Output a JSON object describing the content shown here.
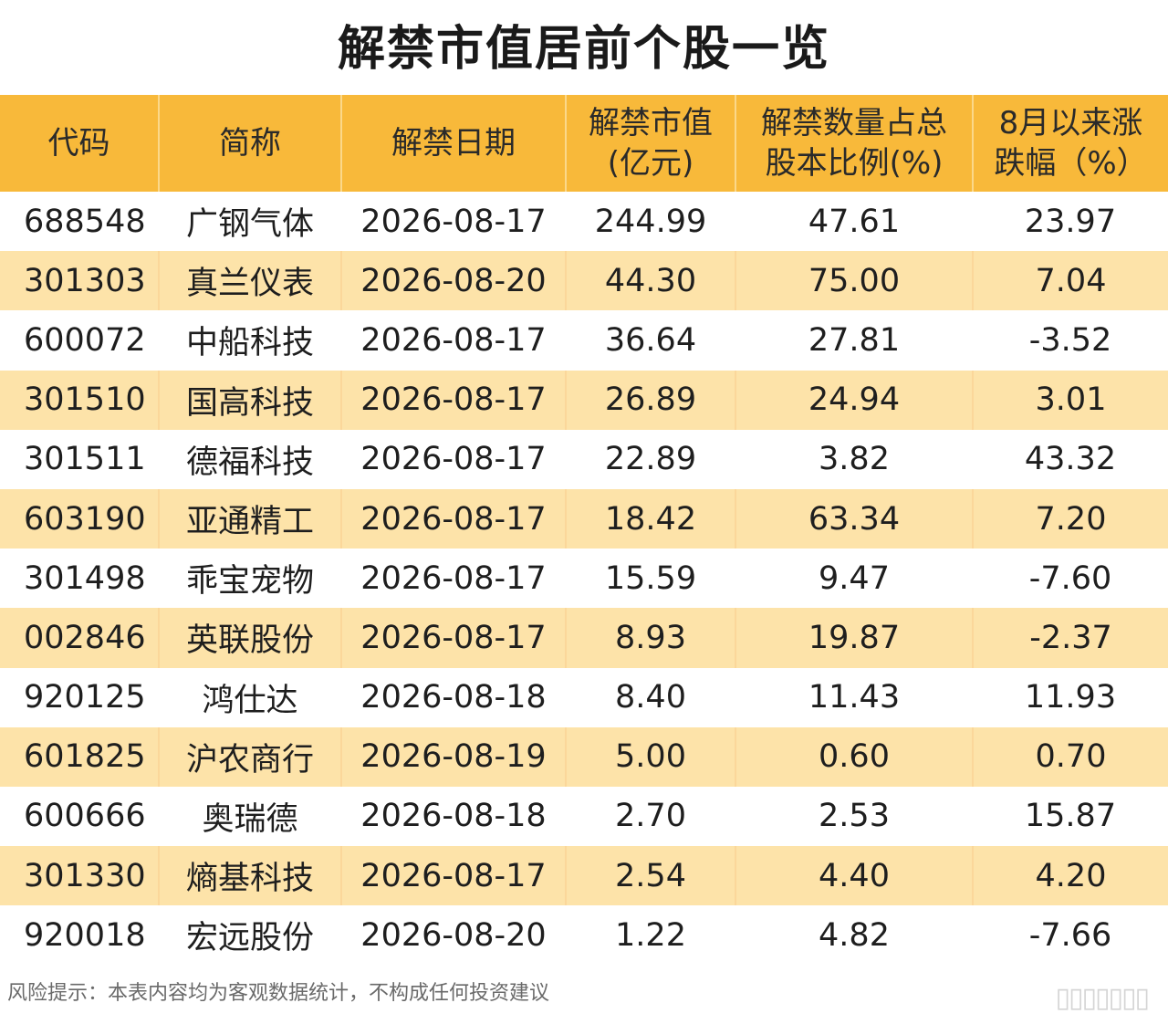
{
  "title": "解禁市值居前个股一览",
  "headers": [
    [
      "代码"
    ],
    [
      "简称"
    ],
    [
      "解禁日期"
    ],
    [
      "解禁市值",
      "(亿元)"
    ],
    [
      "解禁数量占总",
      "股本比例(%)"
    ],
    [
      "8月以来涨",
      "跌幅（%）"
    ]
  ],
  "rows": [
    [
      "688548",
      "广钢气体",
      "2026-08-17",
      "244.99",
      "47.61",
      "23.97"
    ],
    [
      "301303",
      "真兰仪表",
      "2026-08-20",
      "44.30",
      "75.00",
      "7.04"
    ],
    [
      "600072",
      "中船科技",
      "2026-08-17",
      "36.64",
      "27.81",
      "-3.52"
    ],
    [
      "301510",
      "国高科技",
      "2026-08-17",
      "26.89",
      "24.94",
      "3.01"
    ],
    [
      "301511",
      "德福科技",
      "2026-08-17",
      "22.89",
      "3.82",
      "43.32"
    ],
    [
      "603190",
      "亚通精工",
      "2026-08-17",
      "18.42",
      "63.34",
      "7.20"
    ],
    [
      "301498",
      "乖宝宠物",
      "2026-08-17",
      "15.59",
      "9.47",
      "-7.60"
    ],
    [
      "002846",
      "英联股份",
      "2026-08-17",
      "8.93",
      "19.87",
      "-2.37"
    ],
    [
      "920125",
      "鸿仕达",
      "2026-08-18",
      "8.40",
      "11.43",
      "11.93"
    ],
    [
      "601825",
      "沪农商行",
      "2026-08-19",
      "5.00",
      "0.60",
      "0.70"
    ],
    [
      "600666",
      "奥瑞德",
      "2026-08-18",
      "2.70",
      "2.53",
      "15.87"
    ],
    [
      "301330",
      "熵基科技",
      "2026-08-17",
      "2.54",
      "4.40",
      "4.20"
    ],
    [
      "920018",
      "宏远股份",
      "2026-08-20",
      "1.22",
      "4.82",
      "-7.66"
    ]
  ],
  "footer": "风险提示：本表内容均为客观数据统计，不构成任何投资建议",
  "colors": {
    "header": "#f8b93a",
    "alt_row": "#fde3a9",
    "text": "#1e1e1e"
  }
}
